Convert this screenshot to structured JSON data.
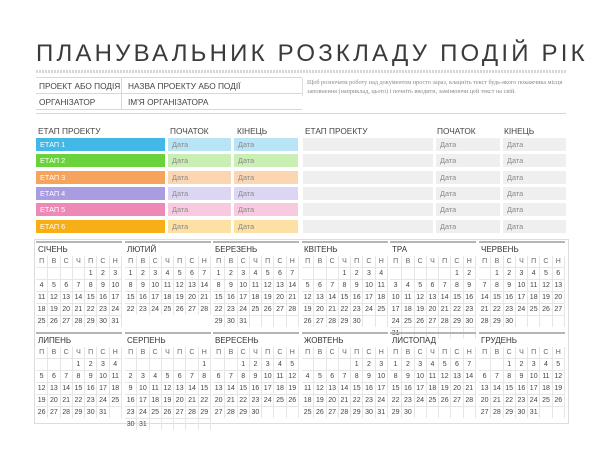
{
  "title": "ПЛАНУВАЛЬНИК РОЗКЛАДУ ПОДІЙ РІК",
  "info": {
    "rows": [
      {
        "label": "ПРОЕКТ АБО ПОДІЯ",
        "value": "НАЗВА ПРОЕКТУ АБО ПОДІЇ"
      },
      {
        "label": "ОРГАНІЗАТОР",
        "value": "ІМ'Я ОРГАНІЗАТОРА"
      }
    ],
    "note": "Щоб розпочати роботу над документом просто зараз, клацніть текст будь-якого покажчика місця заповнення (наприклад, цього) і почніть вводити, замінюючи цей текст на свій."
  },
  "phases_left": {
    "headers": {
      "phase": "ЕТАП ПРОЕКТУ",
      "start": "ПОЧАТОК",
      "end": "КІНЕЦЬ"
    },
    "rows": [
      {
        "label": "ЕТАП 1",
        "start": "Дата",
        "end": "Дата",
        "color": "#41b8e6",
        "light": "#b9e4f6"
      },
      {
        "label": "ЕТАП 2",
        "start": "Дата",
        "end": "Дата",
        "color": "#6ad23b",
        "light": "#c9efb4"
      },
      {
        "label": "ЕТАП 3",
        "start": "Дата",
        "end": "Дата",
        "color": "#f6a35c",
        "light": "#fcd6b3"
      },
      {
        "label": "ЕТАП 4",
        "start": "Дата",
        "end": "Дата",
        "color": "#a99ce1",
        "light": "#dcd6f4"
      },
      {
        "label": "ЕТАП 5",
        "start": "Дата",
        "end": "Дата",
        "color": "#ee88b7",
        "light": "#f8cae0"
      },
      {
        "label": "ЕТАП 6",
        "start": "Дата",
        "end": "Дата",
        "color": "#f8ae16",
        "light": "#fde0a3"
      }
    ]
  },
  "phases_right": {
    "headers": {
      "phase": "ЕТАП ПРОЕКТУ",
      "start": "ПОЧАТОК",
      "end": "КІНЕЦЬ"
    },
    "rows": [
      {
        "label": "",
        "start": "Дата",
        "end": "Дата"
      },
      {
        "label": "",
        "start": "Дата",
        "end": "Дата"
      },
      {
        "label": "",
        "start": "Дата",
        "end": "Дата"
      },
      {
        "label": "",
        "start": "Дата",
        "end": "Дата"
      },
      {
        "label": "",
        "start": "Дата",
        "end": "Дата"
      },
      {
        "label": "",
        "start": "Дата",
        "end": "Дата"
      }
    ],
    "fill": "#efefef"
  },
  "calendar": {
    "weekdays": [
      "П",
      "В",
      "С",
      "Ч",
      "П",
      "С",
      "Н"
    ],
    "months": [
      {
        "name": "СІЧЕНЬ",
        "offset": 4,
        "days": 31
      },
      {
        "name": "ЛЮТИЙ",
        "offset": 0,
        "days": 28
      },
      {
        "name": "БЕРЕЗЕНЬ",
        "offset": 0,
        "days": 31
      },
      {
        "name": "КВІТЕНЬ",
        "offset": 3,
        "days": 30
      },
      {
        "name": "ТРА",
        "offset": 5,
        "days": 31
      },
      {
        "name": "ЧЕРВЕНЬ",
        "offset": 1,
        "days": 30
      },
      {
        "name": "ЛИПЕНЬ",
        "offset": 3,
        "days": 31
      },
      {
        "name": "СЕРПЕНЬ",
        "offset": 6,
        "days": 31
      },
      {
        "name": "ВЕРЕСЕНЬ",
        "offset": 2,
        "days": 30
      },
      {
        "name": "ЖОВТЕНЬ",
        "offset": 4,
        "days": 31
      },
      {
        "name": "ЛИСТОПАД",
        "offset": 0,
        "days": 30
      },
      {
        "name": "ГРУДЕНЬ",
        "offset": 2,
        "days": 31
      }
    ]
  }
}
